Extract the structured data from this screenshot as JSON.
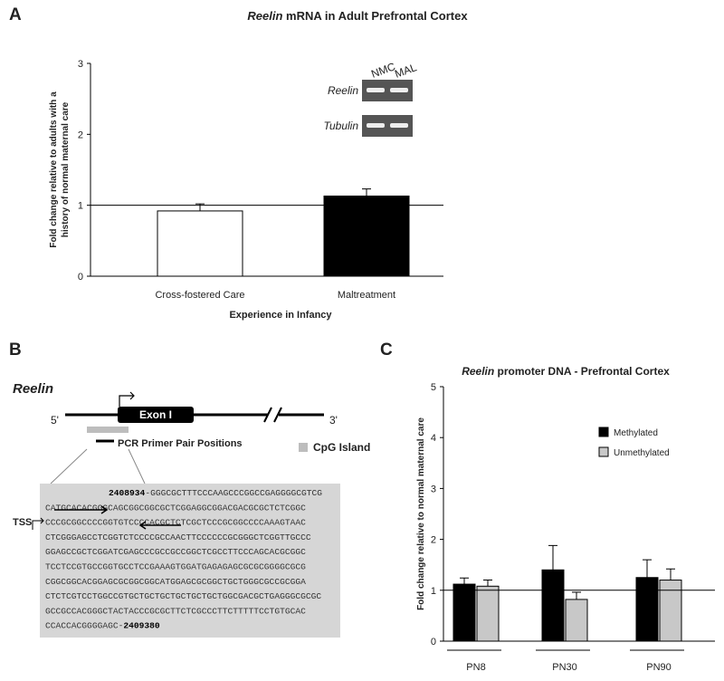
{
  "panel_letters": [
    "A",
    "B",
    "C"
  ],
  "chart_data": [
    {
      "type": "bar",
      "title_italic": "Reelin",
      "title": "mRNA in Adult Prefrontal Cortex",
      "y_label": [
        "Fold change relative to adults with a",
        "history of normal maternal care"
      ],
      "x_label": "Experience in Infancy",
      "categories": [
        "Cross-fostered Care",
        "Maltreatment"
      ],
      "values": [
        0.92,
        1.13
      ],
      "errors": [
        0.1,
        0.1
      ],
      "colors": [
        "#ffffff",
        "#000000"
      ],
      "ylim": [
        0,
        3
      ],
      "yticks": [
        0,
        1,
        2,
        3
      ],
      "reference_line": 1,
      "inset": {
        "lanes": [
          "NMC",
          "MAL"
        ],
        "rows": [
          "Reelin",
          "Tubulin"
        ]
      }
    },
    {
      "type": "grouped_bar",
      "title_italic": "Reelin",
      "title": "promoter DNA - Prefrontal Cortex",
      "y_label": "Fold change relative to normal maternal care",
      "categories": [
        "PN8",
        "PN30",
        "PN90"
      ],
      "series": [
        {
          "name": "Methylated",
          "color": "#000000",
          "values": [
            1.12,
            1.4,
            1.25
          ],
          "errors": [
            0.12,
            0.48,
            0.35
          ]
        },
        {
          "name": "Unmethylated",
          "color": "#c8c8c8",
          "values": [
            1.08,
            0.82,
            1.2
          ],
          "errors": [
            0.12,
            0.14,
            0.22
          ]
        }
      ],
      "ylim": [
        0,
        5
      ],
      "yticks": [
        0,
        1,
        2,
        3,
        4,
        5
      ],
      "reference_line": 1,
      "legend": "top-right"
    }
  ],
  "diagram": {
    "gene": "Reelin",
    "exon": "Exon I",
    "five_prime": "5'",
    "three_prime": "3'",
    "primer_label": "PCR Primer Pair Positions",
    "cpg_label": "CpG Island",
    "tss": "TSS",
    "sequence": {
      "start": "2408934",
      "end": "2409380",
      "lines": [
        "-GGGCGCTTTCCCAAGCCCGGCCGAGGGGCGTCG",
        "CATGCACACGGGCAGCGGCGGCGCTCGGAGGCGGACGACGCGCTCTCGGC",
        "CCCGCGGCCCCGGTGTCCCCACGCTCTCGCTCCCGCGGCCCCAAAGTAAC",
        "CTCGGGAGCCTCGGTCTCCCCGCCAACTTCCCCCCGCGGGCTCGGTTGCCC",
        "GGAGCCGCTCGGATCGAGCCCGCCGCCGGCTCGCCTTCCCAGCACGCGGC",
        "TCCTCCGTGCCGGTGCCTCCGAAAGTGGATGAGAGAGCGCGCGGGGCGCG",
        "CGGCGGCACGGAGCGCGGCGGCATGGAGCGCGGCTGCTGGGCGCCGCGGA",
        "CTCTCGTCCTGGCCGTGCTGCTGCTGCTGCTGCTGGCGACGCTGAGGGCGCGC",
        "GCCGCCACGGGCTACTACCCGCGCTTCTCGCCCTTCTTTTTCCTGTGCAC",
        "CCACCACGGGGAGC-"
      ]
    }
  }
}
